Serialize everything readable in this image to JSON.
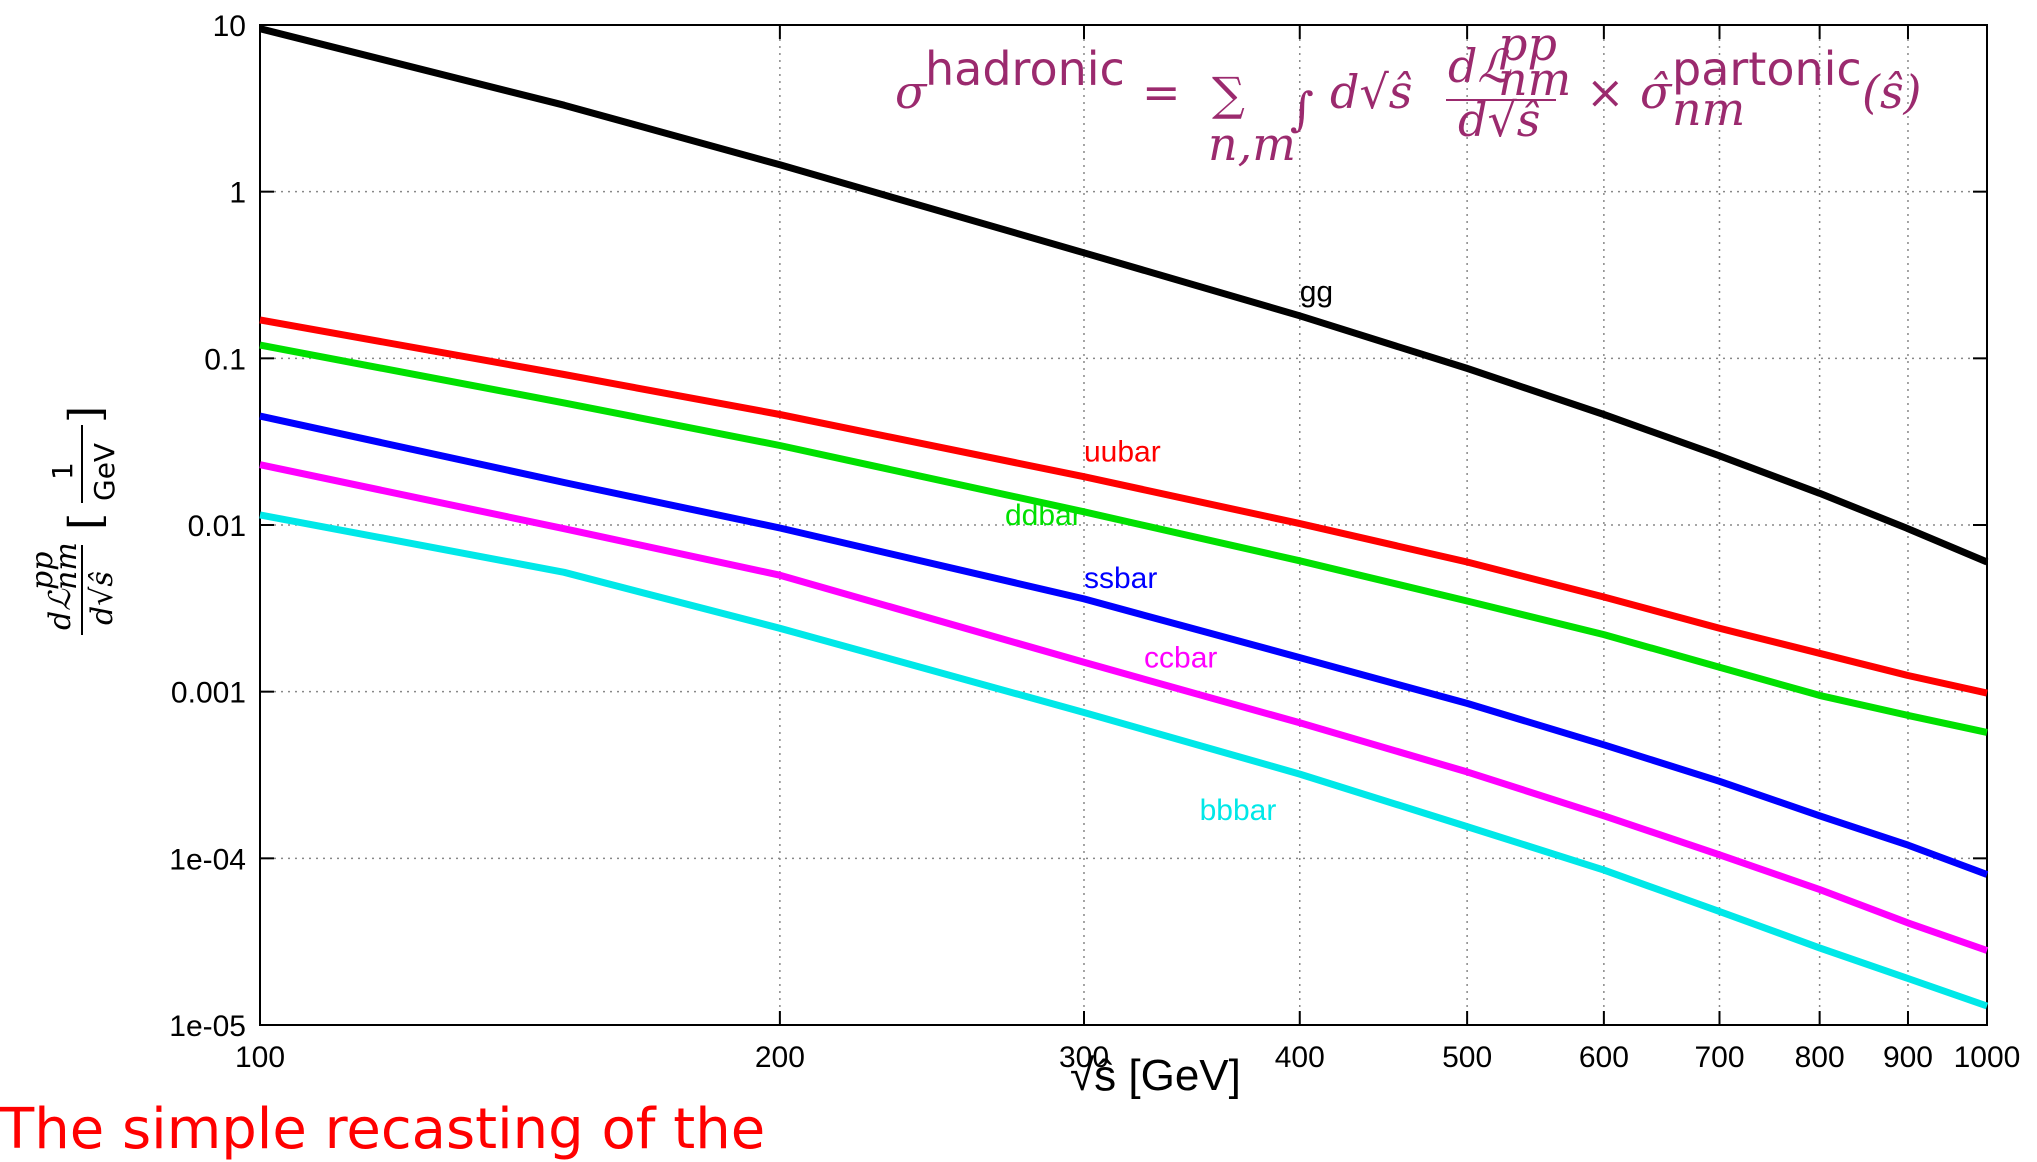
{
  "chart_data": {
    "type": "line",
    "title": "",
    "annotation": {
      "formula_sigma": "σ",
      "formula_sup_hadronic": "hadronic",
      "formula_eq": "=",
      "formula_sum": "∑",
      "formula_sum_sub": "n,m",
      "formula_integral": "∫",
      "formula_d": "d√ŝ",
      "formula_frac_num": "dℒ",
      "formula_frac_num_sup": "pp",
      "formula_frac_num_sub": "nm",
      "formula_frac_den": "d√ŝ",
      "formula_times": "×",
      "formula_sigma_hat": "σ̂",
      "formula_sup_partonic": "partonic",
      "formula_sub_nm": "nm",
      "formula_arg": "(ŝ)",
      "color": "#9b2a6e"
    },
    "xlabel": "√ŝ [GeV]",
    "ylabel": {
      "numerator": "dℒ",
      "numerator_sup": "pp",
      "numerator_sub": "nm",
      "denominator": "d√ŝ",
      "unit_numerator": "1",
      "unit_denominator": "GeV"
    },
    "x_scale": "log",
    "y_scale": "log",
    "xlim": [
      100,
      1000
    ],
    "ylim": [
      1e-05,
      10
    ],
    "grid": true,
    "x_ticks": [
      {
        "value": 100,
        "label": "100"
      },
      {
        "value": 200,
        "label": "200"
      },
      {
        "value": 300,
        "label": "300"
      },
      {
        "value": 400,
        "label": "400"
      },
      {
        "value": 500,
        "label": "500"
      },
      {
        "value": 600,
        "label": "600"
      },
      {
        "value": 700,
        "label": "700"
      },
      {
        "value": 800,
        "label": "800"
      },
      {
        "value": 900,
        "label": "900"
      },
      {
        "value": 1000,
        "label": "1000"
      }
    ],
    "y_ticks": [
      {
        "value": 10,
        "label": "10"
      },
      {
        "value": 1,
        "label": "1"
      },
      {
        "value": 0.1,
        "label": "0.1"
      },
      {
        "value": 0.01,
        "label": "0.01"
      },
      {
        "value": 0.001,
        "label": "0.001"
      },
      {
        "value": 0.0001,
        "label": "1e-04"
      },
      {
        "value": 1e-05,
        "label": "1e-05"
      }
    ],
    "x": [
      100,
      150,
      200,
      300,
      400,
      500,
      600,
      700,
      800,
      900,
      1000
    ],
    "series": [
      {
        "name": "gg",
        "color": "#000000",
        "label_at": [
          400,
          0.22
        ],
        "values": [
          9.5,
          3.3,
          1.45,
          0.43,
          0.18,
          0.087,
          0.046,
          0.026,
          0.0155,
          0.0095,
          0.006
        ]
      },
      {
        "name": "uubar",
        "color": "#ff0000",
        "label_at": [
          300,
          0.024
        ],
        "values": [
          0.17,
          0.08,
          0.046,
          0.0195,
          0.0102,
          0.006,
          0.0037,
          0.0024,
          0.0017,
          0.00125,
          0.00098
        ]
      },
      {
        "name": "ddbar",
        "color": "#00e000",
        "label_at": [
          270,
          0.01
        ],
        "values": [
          0.12,
          0.054,
          0.03,
          0.012,
          0.0061,
          0.0035,
          0.0022,
          0.0014,
          0.00095,
          0.00072,
          0.00057
        ]
      },
      {
        "name": "ssbar",
        "color": "#0000ff",
        "label_at": [
          300,
          0.0042
        ],
        "values": [
          0.045,
          0.018,
          0.0096,
          0.0036,
          0.0016,
          0.00085,
          0.00048,
          0.00029,
          0.00018,
          0.00012,
          8e-05
        ]
      },
      {
        "name": "ccbar",
        "color": "#ff00ff",
        "label_at": [
          325,
          0.0014
        ],
        "values": [
          0.023,
          0.0095,
          0.005,
          0.0015,
          0.00065,
          0.00033,
          0.00018,
          0.000105,
          6.5e-05,
          4.1e-05,
          2.8e-05
        ]
      },
      {
        "name": "bbbar",
        "color": "#00e8e8",
        "label_at": [
          350,
          0.00017
        ],
        "values": [
          0.0115,
          0.0052,
          0.0024,
          0.00075,
          0.00032,
          0.000155,
          8.5e-05,
          4.8e-05,
          2.9e-05,
          1.9e-05,
          1.3e-05
        ]
      }
    ]
  },
  "caption": "The simple recasting of the"
}
